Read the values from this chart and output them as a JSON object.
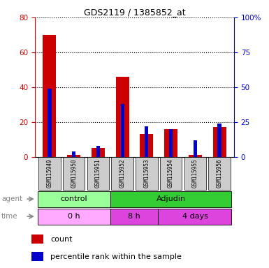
{
  "title": "GDS2119 / 1385852_at",
  "samples": [
    "GSM115949",
    "GSM115950",
    "GSM115951",
    "GSM115952",
    "GSM115953",
    "GSM115954",
    "GSM115955",
    "GSM115956"
  ],
  "count_values": [
    70,
    1,
    5,
    46,
    13,
    16,
    1,
    17
  ],
  "percentile_values": [
    49,
    4,
    8,
    38,
    22,
    20,
    12,
    24
  ],
  "left_ylim": [
    0,
    80
  ],
  "right_ylim": [
    0,
    100
  ],
  "left_yticks": [
    0,
    20,
    40,
    60,
    80
  ],
  "right_yticks": [
    0,
    25,
    50,
    75,
    100
  ],
  "right_yticklabels": [
    "0",
    "25",
    "50",
    "75",
    "100%"
  ],
  "count_color": "#cc0000",
  "percentile_color": "#0000cc",
  "red_bar_width": 0.55,
  "blue_bar_width": 0.15,
  "agent_control_color": "#99ff99",
  "agent_adjudin_color": "#33cc33",
  "time_0h_color": "#ffaaff",
  "time_8h_color": "#dd44dd",
  "time_4days_color": "#dd44dd",
  "tick_label_bg": "#cccccc"
}
